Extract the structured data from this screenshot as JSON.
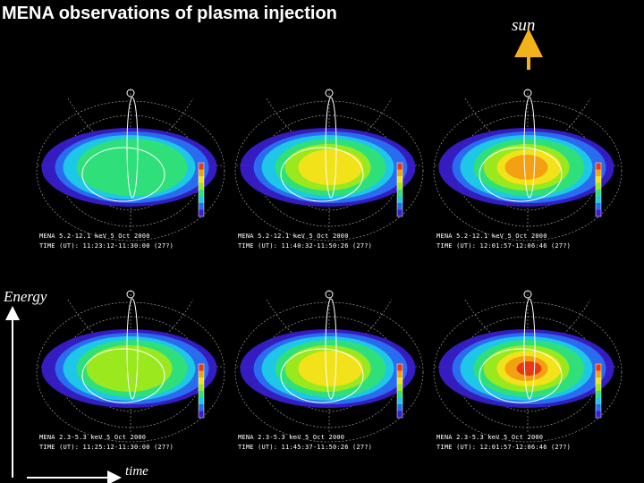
{
  "title": "MENA observations of plasma injection",
  "sun_label": "sun",
  "energy_label": "Energy",
  "time_label": "time",
  "colors": {
    "background": "#000000",
    "sun_arrow": "#f2b21c",
    "axis_arrow": "#ffffff"
  },
  "panels": [
    {
      "line1": "MENA 5.2-12.1 keV   5 Oct 2000",
      "line2": "TIME (UT): 11:23:12-11:30:00 (27?)",
      "intensity": 0.55
    },
    {
      "line1": "MENA 5.2-12.1 keV   5 Oct 2000",
      "line2": "TIME (UT): 11:40:32-11:50:26 (27?)",
      "intensity": 0.75
    },
    {
      "line1": "MENA 5.2-12.1 keV   5 Oct 2000",
      "line2": "TIME (UT): 12:01:57-12:06:46 (27?)",
      "intensity": 0.85
    },
    {
      "line1": "MENA 2.3-5.3 keV   5 Oct 2000",
      "line2": "TIME (UT): 11:25:12-11:30:00 (27?)",
      "intensity": 0.6
    },
    {
      "line1": "MENA 2.3-5.3 keV   5 Oct 2000",
      "line2": "TIME (UT): 11:45:37-11:50:26 (27?)",
      "intensity": 0.8
    },
    {
      "line1": "MENA 2.3-5.3 keV   5 Oct 2000",
      "line2": "TIME (UT): 12:01:57-12:06:46 (27?)",
      "intensity": 0.95
    }
  ]
}
